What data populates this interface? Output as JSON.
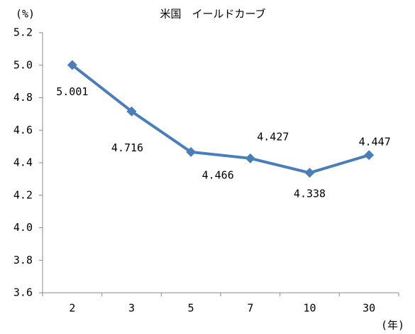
{
  "chart_data": {
    "type": "line",
    "title": "米国　イールドカーブ",
    "y_unit_label": "(%)",
    "x_unit_label": "(年)",
    "categories": [
      "2",
      "3",
      "5",
      "7",
      "10",
      "30"
    ],
    "series": [
      {
        "name": "米国",
        "color": "#4a7ebb",
        "values": [
          5.001,
          4.716,
          4.466,
          4.427,
          4.338,
          4.447
        ]
      }
    ],
    "ylim": [
      3.6,
      5.2
    ],
    "yticks": [
      3.6,
      3.8,
      {
        "value": 4,
        "label": "4.0"
      },
      4.2,
      4.4,
      4.6,
      4.8,
      {
        "value": 5,
        "label": "5.0"
      },
      5.2
    ]
  }
}
